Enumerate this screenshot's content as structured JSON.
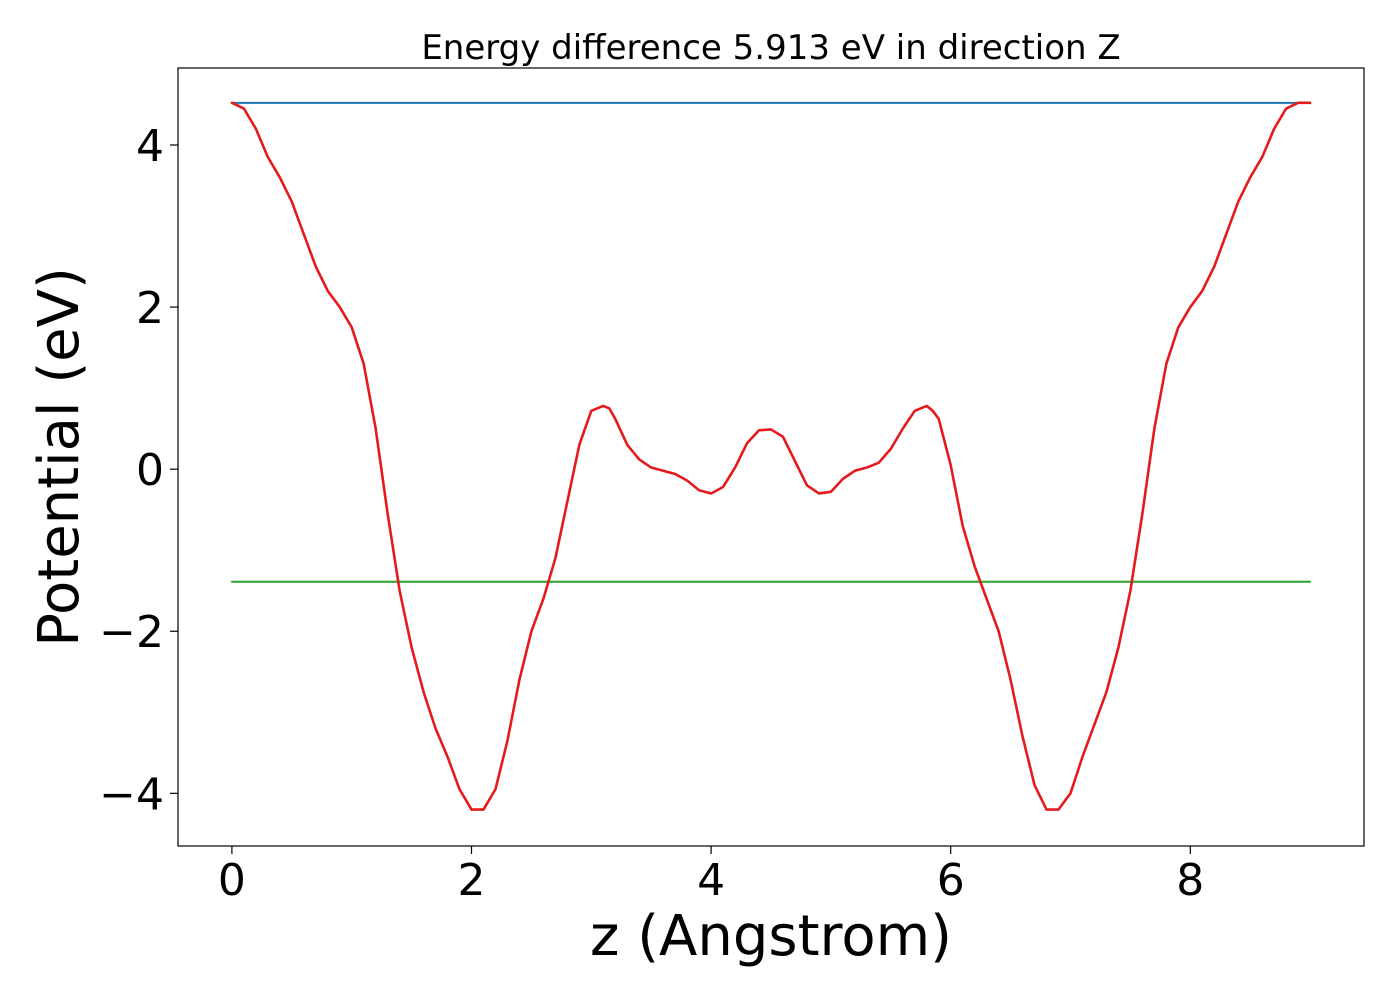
{
  "chart_data": {
    "type": "line",
    "title": "Energy difference 5.913 eV in direction Z",
    "xlabel": "z (Angstrom)",
    "ylabel": "Potential (eV)",
    "xlim": [
      -0.45,
      9.45
    ],
    "ylim": [
      -4.65,
      4.95
    ],
    "xticks": [
      {
        "value": 0,
        "label": "0"
      },
      {
        "value": 2,
        "label": "2"
      },
      {
        "value": 4,
        "label": "4"
      },
      {
        "value": 6,
        "label": "6"
      },
      {
        "value": 8,
        "label": "8"
      }
    ],
    "yticks": [
      {
        "value": -4,
        "label": "−4"
      },
      {
        "value": -2,
        "label": "−2"
      },
      {
        "value": 0,
        "label": "0"
      },
      {
        "value": 2,
        "label": "2"
      },
      {
        "value": 4,
        "label": "4"
      }
    ],
    "grid": false,
    "series": [
      {
        "color": "#1f77b4",
        "x": [
          0,
          9
        ],
        "y": [
          4.52,
          4.52
        ]
      },
      {
        "color": "#2ca02c",
        "x": [
          0,
          9
        ],
        "y": [
          -1.39,
          -1.39
        ]
      },
      {
        "color": "#e41a1c",
        "x": [
          0,
          0.1,
          0.2,
          0.3,
          0.4,
          0.5,
          0.6,
          0.7,
          0.8,
          0.9,
          1.0,
          1.1,
          1.2,
          1.3,
          1.4,
          1.5,
          1.6,
          1.7,
          1.8,
          1.9,
          2.0,
          2.1,
          2.2,
          2.3,
          2.4,
          2.5,
          2.6,
          2.7,
          2.8,
          2.9,
          3.0,
          3.1,
          3.15,
          3.2,
          3.3,
          3.4,
          3.5,
          3.6,
          3.7,
          3.8,
          3.9,
          4.0,
          4.1,
          4.2,
          4.3,
          4.4,
          4.5,
          4.6,
          4.7,
          4.8,
          4.9,
          5.0,
          5.1,
          5.2,
          5.3,
          5.4,
          5.5,
          5.6,
          5.7,
          5.8,
          5.85,
          5.9,
          6.0,
          6.1,
          6.2,
          6.3,
          6.4,
          6.5,
          6.6,
          6.7,
          6.8,
          6.9,
          7.0,
          7.1,
          7.2,
          7.3,
          7.4,
          7.5,
          7.6,
          7.7,
          7.8,
          7.9,
          8.0,
          8.1,
          8.2,
          8.3,
          8.4,
          8.5,
          8.6,
          8.7,
          8.8,
          8.9,
          9.0
        ],
        "y": [
          4.52,
          4.45,
          4.2,
          3.85,
          3.6,
          3.3,
          2.9,
          2.5,
          2.2,
          2.0,
          1.75,
          1.3,
          0.5,
          -0.55,
          -1.5,
          -2.2,
          -2.75,
          -3.2,
          -3.55,
          -3.95,
          -4.2,
          -4.2,
          -3.95,
          -3.35,
          -2.6,
          -2.0,
          -1.6,
          -1.1,
          -0.4,
          0.3,
          0.72,
          0.78,
          0.75,
          0.62,
          0.3,
          0.12,
          0.02,
          -0.02,
          -0.06,
          -0.14,
          -0.26,
          -0.3,
          -0.22,
          0.02,
          0.32,
          0.48,
          0.49,
          0.4,
          0.1,
          -0.2,
          -0.3,
          -0.28,
          -0.12,
          -0.02,
          0.02,
          0.08,
          0.25,
          0.5,
          0.72,
          0.78,
          0.72,
          0.62,
          0.05,
          -0.7,
          -1.2,
          -1.6,
          -2.0,
          -2.6,
          -3.3,
          -3.9,
          -4.2,
          -4.2,
          -4.0,
          -3.55,
          -3.15,
          -2.75,
          -2.2,
          -1.5,
          -0.55,
          0.5,
          1.3,
          1.75,
          2.0,
          2.2,
          2.5,
          2.9,
          3.3,
          3.6,
          3.85,
          4.2,
          4.45,
          4.52,
          4.52
        ]
      }
    ]
  }
}
